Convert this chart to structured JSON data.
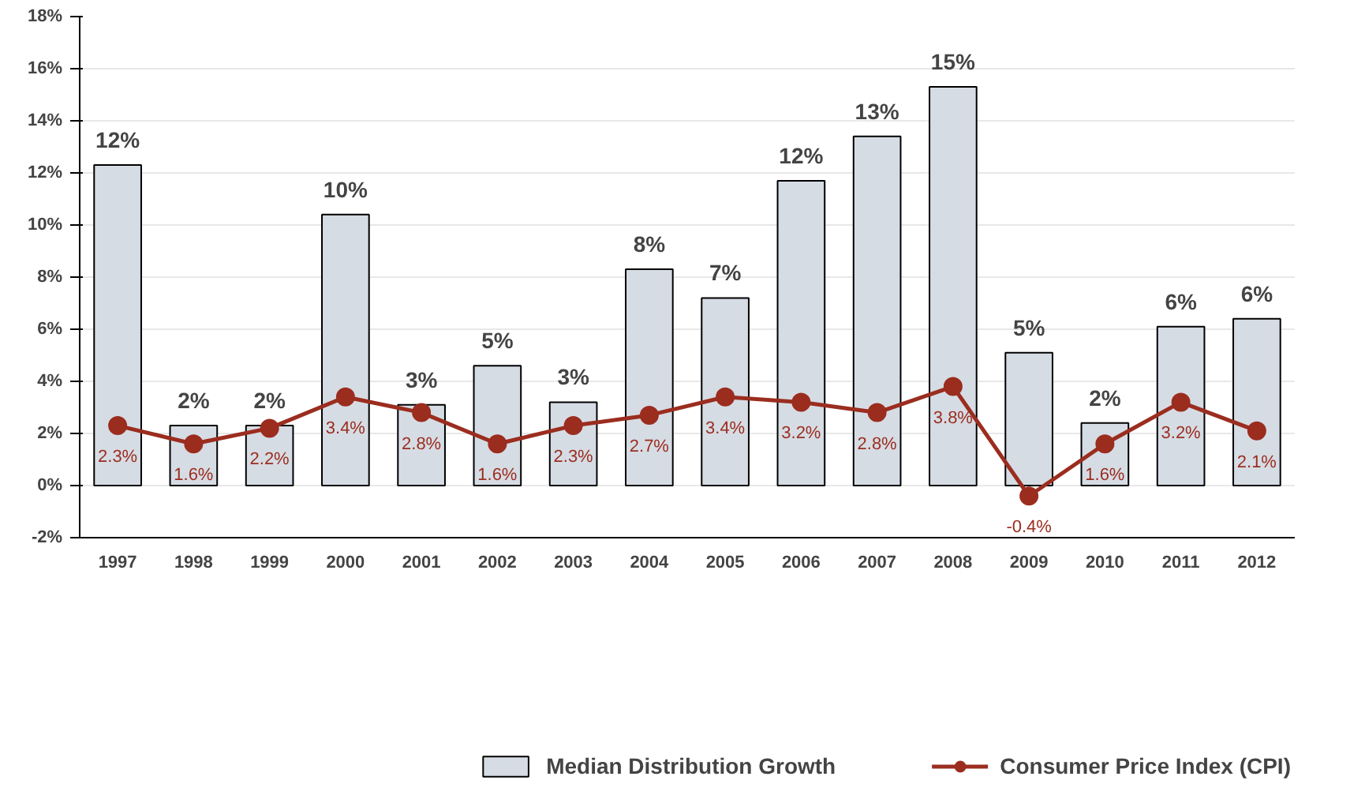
{
  "chart_data": {
    "type": "bar",
    "categories": [
      "1997",
      "1998",
      "1999",
      "2000",
      "2001",
      "2002",
      "2003",
      "2004",
      "2005",
      "2006",
      "2007",
      "2008",
      "2009",
      "2010",
      "2011",
      "2012"
    ],
    "series": [
      {
        "name": "Median Distribution Growth",
        "color": "#d6dce4",
        "values": [
          12.3,
          2.3,
          2.3,
          10.4,
          3.1,
          4.6,
          3.2,
          8.3,
          7.2,
          11.7,
          13.4,
          15.3,
          5.1,
          2.4,
          6.1,
          6.4
        ],
        "value_labels": [
          "12%",
          "2%",
          "2%",
          "10%",
          "3%",
          "5%",
          "3%",
          "8%",
          "7%",
          "12%",
          "13%",
          "15%",
          "5%",
          "2%",
          "6%",
          "6%"
        ]
      },
      {
        "name": "Consumer Price Index (CPI)",
        "type": "line",
        "color": "#9b2d1f",
        "marker": "circle",
        "values": [
          2.3,
          1.6,
          2.2,
          3.4,
          2.8,
          1.6,
          2.3,
          2.7,
          3.4,
          3.2,
          2.8,
          3.8,
          -0.4,
          1.6,
          3.2,
          2.1
        ],
        "value_labels": [
          "2.3%",
          "1.6%",
          "2.2%",
          "3.4%",
          "2.8%",
          "1.6%",
          "2.3%",
          "2.7%",
          "3.4%",
          "3.2%",
          "2.8%",
          "3.8%",
          "-0.4%",
          "1.6%",
          "3.2%",
          "2.1%"
        ]
      }
    ],
    "ylim": [
      -2,
      18
    ],
    "yticks": [
      {
        "value": -2,
        "label": "-2%"
      },
      {
        "value": 0,
        "label": "0%"
      },
      {
        "value": 2,
        "label": "2%"
      },
      {
        "value": 4,
        "label": "4%"
      },
      {
        "value": 6,
        "label": "6%"
      },
      {
        "value": 8,
        "label": "8%"
      },
      {
        "value": 10,
        "label": "10%"
      },
      {
        "value": 12,
        "label": "12%"
      },
      {
        "value": 14,
        "label": "14%"
      },
      {
        "value": 16,
        "label": "16%"
      },
      {
        "value": 18,
        "label": "18%"
      }
    ],
    "grid": "y",
    "legend": "bottom"
  }
}
